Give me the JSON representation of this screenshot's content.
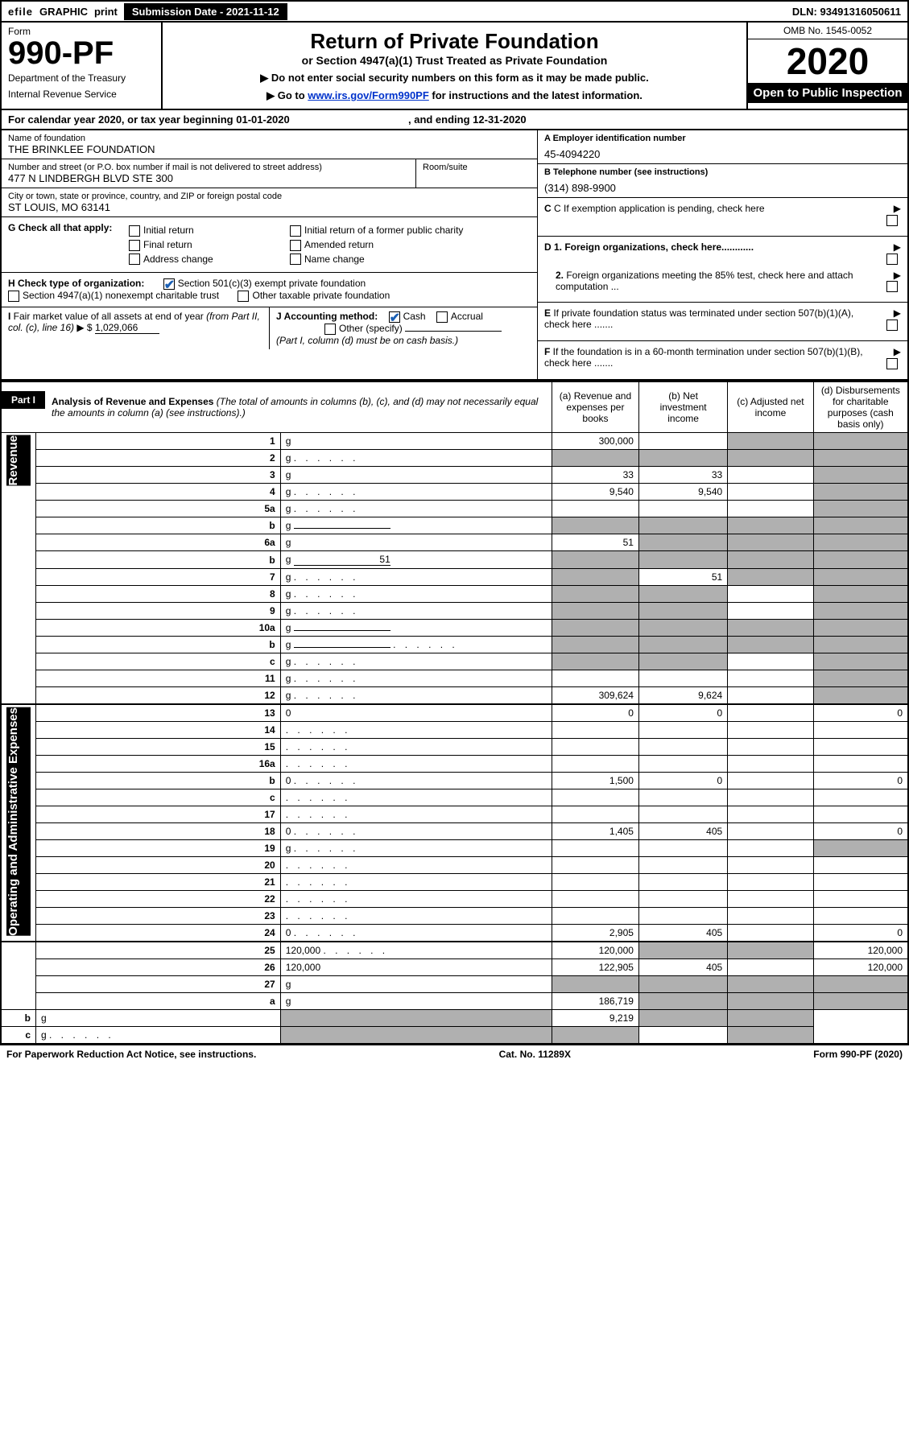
{
  "top": {
    "efile": "efile",
    "graphic": "GRAPHIC",
    "print": "print",
    "submission_label": "Submission Date - ",
    "submission_date": "2021-11-12",
    "dln": "DLN: 93491316050611"
  },
  "header": {
    "form_label": "Form",
    "form_no": "990-PF",
    "dept1": "Department of the Treasury",
    "dept2": "Internal Revenue Service",
    "title": "Return of Private Foundation",
    "subtitle": "or Section 4947(a)(1) Trust Treated as Private Foundation",
    "instr1": "▶ Do not enter social security numbers on this form as it may be made public.",
    "instr2_pre": "▶ Go to ",
    "instr2_link": "www.irs.gov/Form990PF",
    "instr2_post": " for instructions and the latest information.",
    "omb": "OMB No. 1545-0052",
    "year": "2020",
    "open": "Open to Public Inspection"
  },
  "cal": {
    "text_a": "For calendar year 2020, or tax year beginning ",
    "begin": "01-01-2020",
    "text_b": ", and ending ",
    "end": "12-31-2020"
  },
  "id": {
    "name_lab": "Name of foundation",
    "name": "THE BRINKLEE FOUNDATION",
    "addr_lab": "Number and street (or P.O. box number if mail is not delivered to street address)",
    "addr": "477 N LINDBERGH BLVD STE 300",
    "room_lab": "Room/suite",
    "city_lab": "City or town, state or province, country, and ZIP or foreign postal code",
    "city": "ST LOUIS, MO  63141",
    "ein_lab": "A Employer identification number",
    "ein": "45-4094220",
    "tel_lab": "B Telephone number (see instructions)",
    "tel": "(314) 898-9900",
    "c": "C If exemption application is pending, check here",
    "d1": "D 1. Foreign organizations, check here............",
    "d2": "2. Foreign organizations meeting the 85% test, check here and attach computation ...",
    "e": "E If private foundation status was terminated under section 507(b)(1)(A), check here .......",
    "f": "F If the foundation is in a 60-month termination under section 507(b)(1)(B), check here .......",
    "g_lab": "G Check all that apply:",
    "g_opts": [
      "Initial return",
      "Initial return of a former public charity",
      "Final return",
      "Amended return",
      "Address change",
      "Name change"
    ],
    "h_lab": "H Check type of organization:",
    "h_opts": [
      "Section 501(c)(3) exempt private foundation",
      "Section 4947(a)(1) nonexempt charitable trust",
      "Other taxable private foundation"
    ],
    "i_lab": "I Fair market value of all assets at end of year (from Part II, col. (c), line 16) ▶ $",
    "i_val": "1,029,066",
    "j_lab": "J Accounting method:",
    "j_opts": [
      "Cash",
      "Accrual",
      "Other (specify)"
    ],
    "j_note": "(Part I, column (d) must be on cash basis.)"
  },
  "part1": {
    "part_lab": "Part I",
    "title": "Analysis of Revenue and Expenses",
    "title_note": "(The total of amounts in columns (b), (c), and (d) may not necessarily equal the amounts in column (a) (see instructions).)",
    "cols": {
      "a": "(a) Revenue and expenses per books",
      "b": "(b) Net investment income",
      "c": "(c) Adjusted net income",
      "d": "(d) Disbursements for charitable purposes (cash basis only)"
    },
    "side_rev": "Revenue",
    "side_exp": "Operating and Administrative Expenses",
    "rows": [
      {
        "n": "1",
        "d": "g",
        "a": "300,000",
        "b": "",
        "c": "g"
      },
      {
        "n": "2",
        "d": "g",
        "dotted": true,
        "a": "g",
        "b": "g",
        "c": "g"
      },
      {
        "n": "3",
        "d": "g",
        "a": "33",
        "b": "33",
        "c": ""
      },
      {
        "n": "4",
        "d": "g",
        "dotted": true,
        "a": "9,540",
        "b": "9,540",
        "c": ""
      },
      {
        "n": "5a",
        "d": "g",
        "dotted": true,
        "a": "",
        "b": "",
        "c": ""
      },
      {
        "n": "b",
        "d": "g",
        "inline": true,
        "a": "g",
        "b": "g",
        "c": "g"
      },
      {
        "n": "6a",
        "d": "g",
        "a": "51",
        "b": "g",
        "c": "g"
      },
      {
        "n": "b",
        "d": "g",
        "inline": true,
        "inline_val": "51",
        "a": "g",
        "b": "g",
        "c": "g"
      },
      {
        "n": "7",
        "d": "g",
        "dotted": true,
        "a": "g",
        "b": "51",
        "c": "g"
      },
      {
        "n": "8",
        "d": "g",
        "dotted": true,
        "a": "g",
        "b": "g",
        "c": ""
      },
      {
        "n": "9",
        "d": "g",
        "dotted": true,
        "a": "g",
        "b": "g",
        "c": ""
      },
      {
        "n": "10a",
        "d": "g",
        "inline": true,
        "a": "g",
        "b": "g",
        "c": "g"
      },
      {
        "n": "b",
        "d": "g",
        "dotted": true,
        "inline": true,
        "a": "g",
        "b": "g",
        "c": "g"
      },
      {
        "n": "c",
        "d": "g",
        "dotted": true,
        "a": "g",
        "b": "g",
        "c": ""
      },
      {
        "n": "11",
        "d": "g",
        "dotted": true,
        "a": "",
        "b": "",
        "c": ""
      },
      {
        "n": "12",
        "d": "g",
        "dotted": true,
        "a": "309,624",
        "b": "9,624",
        "c": "",
        "bold": true
      },
      {
        "n": "13",
        "d": "0",
        "a": "0",
        "b": "0",
        "c": ""
      },
      {
        "n": "14",
        "d": "",
        "dotted": true,
        "a": "",
        "b": "",
        "c": ""
      },
      {
        "n": "15",
        "d": "",
        "dotted": true,
        "a": "",
        "b": "",
        "c": ""
      },
      {
        "n": "16a",
        "d": "",
        "dotted": true,
        "a": "",
        "b": "",
        "c": ""
      },
      {
        "n": "b",
        "d": "0",
        "dotted": true,
        "a": "1,500",
        "b": "0",
        "c": ""
      },
      {
        "n": "c",
        "d": "",
        "dotted": true,
        "a": "",
        "b": "",
        "c": ""
      },
      {
        "n": "17",
        "d": "",
        "dotted": true,
        "a": "",
        "b": "",
        "c": ""
      },
      {
        "n": "18",
        "d": "0",
        "dotted": true,
        "a": "1,405",
        "b": "405",
        "c": ""
      },
      {
        "n": "19",
        "d": "g",
        "dotted": true,
        "a": "",
        "b": "",
        "c": ""
      },
      {
        "n": "20",
        "d": "",
        "dotted": true,
        "a": "",
        "b": "",
        "c": ""
      },
      {
        "n": "21",
        "d": "",
        "dotted": true,
        "a": "",
        "b": "",
        "c": ""
      },
      {
        "n": "22",
        "d": "",
        "dotted": true,
        "a": "",
        "b": "",
        "c": ""
      },
      {
        "n": "23",
        "d": "",
        "dotted": true,
        "a": "",
        "b": "",
        "c": ""
      },
      {
        "n": "24",
        "d": "0",
        "dotted": true,
        "a": "2,905",
        "b": "405",
        "c": ""
      },
      {
        "n": "25",
        "d": "120,000",
        "dotted": true,
        "a": "120,000",
        "b": "g",
        "c": "g"
      },
      {
        "n": "26",
        "d": "120,000",
        "a": "122,905",
        "b": "405",
        "c": ""
      },
      {
        "n": "27",
        "d": "g",
        "a": "g",
        "b": "g",
        "c": "g"
      },
      {
        "n": "a",
        "d": "g",
        "a": "186,719",
        "b": "g",
        "c": "g"
      },
      {
        "n": "b",
        "d": "g",
        "a": "g",
        "b": "9,219",
        "c": "g"
      },
      {
        "n": "c",
        "d": "g",
        "dotted": true,
        "a": "g",
        "b": "g",
        "c": ""
      }
    ]
  },
  "footer": {
    "left": "For Paperwork Reduction Act Notice, see instructions.",
    "mid": "Cat. No. 11289X",
    "right": "Form 990-PF (2020)"
  },
  "colors": {
    "grey": "#b0b0b0",
    "link": "#0033cc",
    "check": "#1a5fb4"
  }
}
